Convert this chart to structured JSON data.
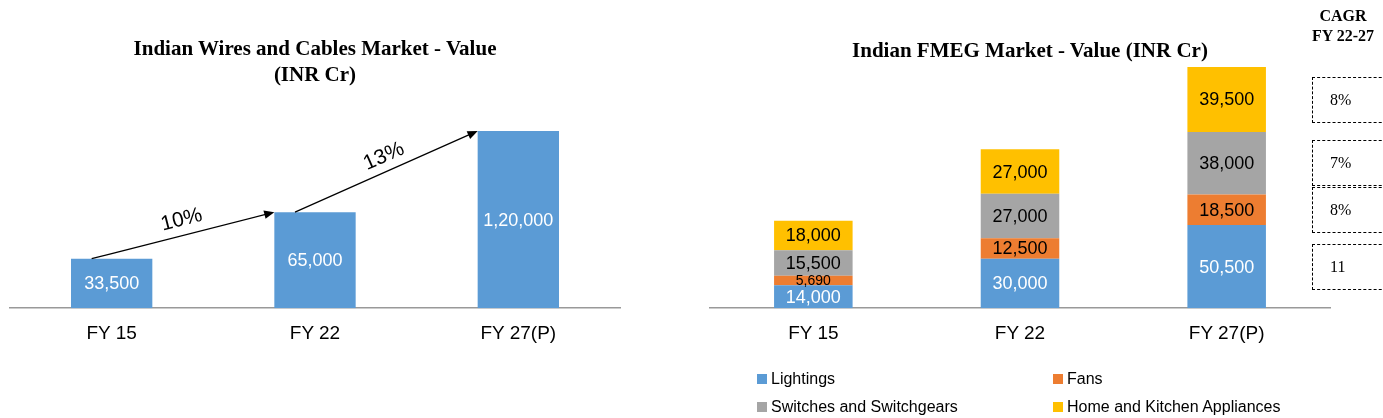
{
  "chart_data": [
    {
      "type": "bar",
      "title": "Indian Wires and Cables Market - Value (INR Cr)",
      "categories": [
        "FY 15",
        "FY 22",
        "FY 27(P)"
      ],
      "values": [
        33500,
        65000,
        120000
      ],
      "value_labels": [
        "33,500",
        "65,000",
        "1,20,000"
      ],
      "color": "#5b9bd5",
      "annotations": [
        "10%",
        "13%"
      ]
    },
    {
      "type": "bar",
      "stacked": true,
      "title": "Indian FMEG Market - Value (INR Cr)",
      "categories": [
        "FY 15",
        "FY 22",
        "FY 27(P)"
      ],
      "legend": "bottom",
      "annotations": [
        "CAGR FY 22-27",
        "8%",
        "7%",
        "8%",
        "11"
      ],
      "series": [
        {
          "name": "Lightings",
          "color": "#5b9bd5",
          "values": [
            14000,
            30000,
            50500
          ],
          "value_labels": [
            "14,000",
            "30,000",
            "50,500"
          ]
        },
        {
          "name": "Fans",
          "color": "#ed7d31",
          "values": [
            5690,
            12500,
            18500
          ],
          "value_labels": [
            "5,690",
            "12,500",
            "18,500"
          ]
        },
        {
          "name": "Switches and Switchgears",
          "color": "#a5a5a5",
          "values": [
            15500,
            27000,
            38000
          ],
          "value_labels": [
            "15,500",
            "27,000",
            "38,000"
          ]
        },
        {
          "name": "Home and Kitchen Appliances",
          "color": "#ffc000",
          "values": [
            18000,
            27000,
            39500
          ],
          "value_labels": [
            "18,000",
            "27,000",
            "39,500"
          ]
        }
      ]
    }
  ]
}
